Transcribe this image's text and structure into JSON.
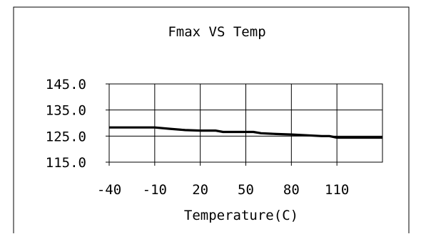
{
  "chart_data": {
    "type": "line",
    "title": "Fmax VS Temp",
    "xlabel": "Temperature(C)",
    "ylabel": "",
    "x_ticks": [
      -40,
      -10,
      20,
      50,
      80,
      110
    ],
    "x_tick_labels": [
      "-40",
      "-10",
      "20",
      "50",
      "80",
      "110"
    ],
    "xlim": [
      -40,
      140
    ],
    "y_ticks": [
      115,
      125,
      135,
      145
    ],
    "y_tick_labels": [
      "115.0",
      "125.0",
      "135.0",
      "145.0"
    ],
    "ylim": [
      115,
      145
    ],
    "grid": true,
    "legend": "none",
    "series": [
      {
        "color": "#000000",
        "x": [
          -40,
          -10,
          0,
          10,
          20,
          25,
          30,
          35,
          40,
          50,
          55,
          60,
          70,
          80,
          90,
          100,
          105,
          110,
          120,
          130,
          140
        ],
        "values": [
          128.3,
          128.3,
          127.8,
          127.3,
          127.1,
          127.1,
          127.1,
          126.6,
          126.6,
          126.6,
          126.6,
          126.1,
          125.8,
          125.6,
          125.3,
          125.0,
          125.0,
          124.4,
          124.4,
          124.4,
          124.4
        ]
      }
    ]
  }
}
